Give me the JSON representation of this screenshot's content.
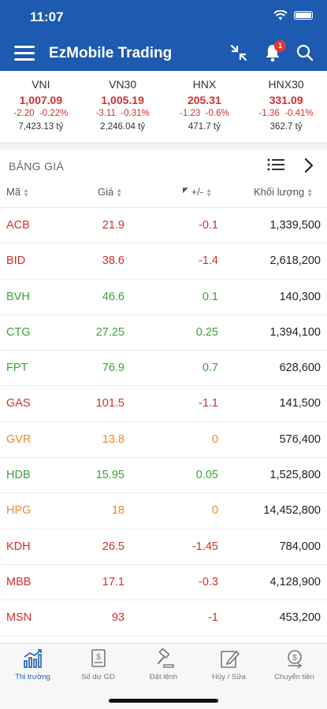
{
  "status_bar": {
    "time": "11:07"
  },
  "header": {
    "title": "EzMobile Trading",
    "notification_count": "1"
  },
  "indices": [
    {
      "name": "VNI",
      "value": "1,007.09",
      "change": "-2.20  -0.22%",
      "volume": "7,423.13 tỷ"
    },
    {
      "name": "VN30",
      "value": "1,005.19",
      "change": "-3.11  -0.31%",
      "volume": "2,246.04 tỷ"
    },
    {
      "name": "HNX",
      "value": "205.31",
      "change": "-1.23  -0.6%",
      "volume": "471.7 tỷ"
    },
    {
      "name": "HNX30",
      "value": "331.09",
      "change": "-1.36  -0.41%",
      "volume": "362.7 tỷ"
    }
  ],
  "board": {
    "title": "BẢNG GIÁ",
    "columns": {
      "symbol": "Mã",
      "price": "Giá",
      "change": "+/-",
      "volume": "Khối lượng"
    },
    "rows": [
      {
        "symbol": "ACB",
        "price": "21.9",
        "change": "-0.1",
        "volume": "1,339,500",
        "color": "#d32f2f"
      },
      {
        "symbol": "BID",
        "price": "38.6",
        "change": "-1.4",
        "volume": "2,618,200",
        "color": "#d32f2f"
      },
      {
        "symbol": "BVH",
        "price": "46.6",
        "change": "0.1",
        "volume": "140,300",
        "color": "#3aa13a"
      },
      {
        "symbol": "CTG",
        "price": "27.25",
        "change": "0.25",
        "volume": "1,394,100",
        "color": "#3aa13a"
      },
      {
        "symbol": "FPT",
        "price": "76.9",
        "change": "0.7",
        "volume": "628,600",
        "color": "#3aa13a"
      },
      {
        "symbol": "GAS",
        "price": "101.5",
        "change": "-1.1",
        "volume": "141,500",
        "color": "#d32f2f"
      },
      {
        "symbol": "GVR",
        "price": "13.8",
        "change": "0",
        "volume": "576,400",
        "color": "#f08a24"
      },
      {
        "symbol": "HDB",
        "price": "15.95",
        "change": "0.05",
        "volume": "1,525,800",
        "color": "#3aa13a"
      },
      {
        "symbol": "HPG",
        "price": "18",
        "change": "0",
        "volume": "14,452,800",
        "color": "#f08a24"
      },
      {
        "symbol": "KDH",
        "price": "26.5",
        "change": "-1.45",
        "volume": "784,000",
        "color": "#d32f2f"
      },
      {
        "symbol": "MBB",
        "price": "17.1",
        "change": "-0.3",
        "volume": "4,128,900",
        "color": "#d32f2f"
      },
      {
        "symbol": "MSN",
        "price": "93",
        "change": "-1",
        "volume": "453,200",
        "color": "#d32f2f"
      }
    ]
  },
  "tabs": [
    {
      "label": "Thị trường",
      "icon": "chart-icon",
      "active": true
    },
    {
      "label": "Số dư GD",
      "icon": "balance-icon",
      "active": false
    },
    {
      "label": "Đặt lệnh",
      "icon": "gavel-icon",
      "active": false
    },
    {
      "label": "Hủy / Sửa",
      "icon": "edit-icon",
      "active": false
    },
    {
      "label": "Chuyển tiền",
      "icon": "money-transfer-icon",
      "active": false
    }
  ],
  "colors": {
    "header_bg": "#1d5bb0",
    "down": "#d32f2f",
    "up": "#3aa13a",
    "reference": "#f08a24"
  }
}
